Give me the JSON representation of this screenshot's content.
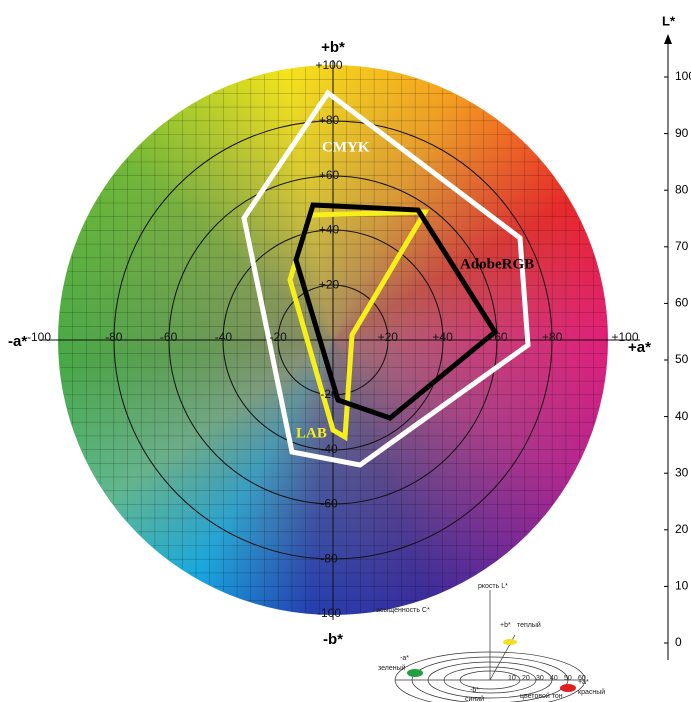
{
  "axes": {
    "b_pos": "+b*",
    "b_neg": "-b*",
    "a_neg": "-a*",
    "a_pos": "+a*",
    "l": "L*"
  },
  "b_ticks": [
    "+100",
    "+80",
    "+60",
    "+40",
    "+20",
    "-20",
    "-40",
    "-60",
    "-80",
    "-100"
  ],
  "a_ticks": [
    "-100",
    "-80",
    "-60",
    "-40",
    "-20",
    "+20",
    "+40",
    "+60",
    "+80",
    "+100"
  ],
  "l_ticks": [
    100,
    90,
    80,
    70,
    60,
    50,
    40,
    30,
    20,
    10,
    0
  ],
  "gamuts": {
    "cmyk": "CMYK",
    "adobe": "AdobeRGB",
    "lab": "LAB"
  },
  "inset": {
    "lightness": "ркость L*",
    "chroma": "асыщенность C*",
    "b_pos": "+b*",
    "warm": "теплый",
    "a_neg": "-a*",
    "green": "зеленый",
    "a_pos": "+a*",
    "red": "красный",
    "b_neg": "-b*",
    "blue": "синий",
    "hue": "цветовой тон",
    "rings": [
      "10",
      "20",
      "30",
      "40",
      "50",
      "60"
    ]
  }
}
